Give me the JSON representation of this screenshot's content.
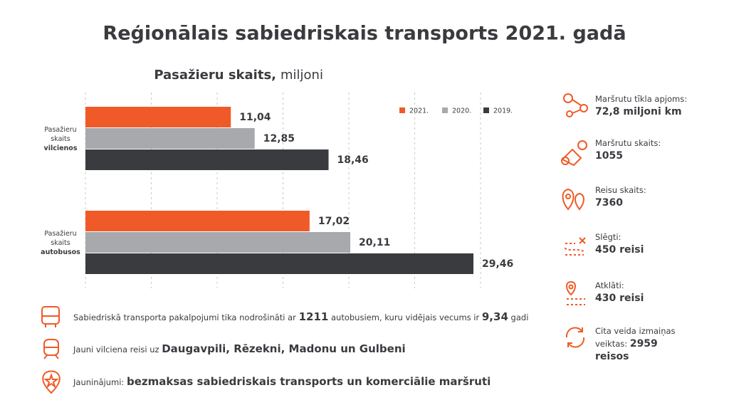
{
  "header": {
    "title": "Reģionālais sabiedriskais transports 2021. gadā"
  },
  "chart_data": {
    "type": "hbar",
    "title": "Pasažieru skaits,",
    "subtitle": "miljoni",
    "categories": [
      "Pasažieru skaits vilcienos",
      "Pasažieru skaits autobusos"
    ],
    "series": [
      {
        "name": "2021.",
        "color": "#f05a28",
        "values": [
          11.04,
          17.02
        ],
        "value_labels": [
          "11,04",
          "17,02"
        ]
      },
      {
        "name": "2020.",
        "color": "#a7a9ac",
        "values": [
          12.85,
          20.11
        ],
        "value_labels": [
          "12,85",
          "20,11"
        ]
      },
      {
        "name": "2019.",
        "color": "#3a3b3f",
        "values": [
          18.46,
          29.46
        ],
        "value_labels": [
          "18,46",
          "29,46"
        ]
      }
    ],
    "xlim": [
      0,
      30
    ],
    "xticks": [
      0,
      5,
      10,
      15,
      20,
      25,
      30
    ],
    "grid": true,
    "legend": "top-right"
  },
  "stats": [
    {
      "label": "Maršrutu tīkla apjoms:",
      "value": "72,8 miljoni km"
    },
    {
      "label": "Maršrutu skaits:",
      "value": "1055"
    },
    {
      "label": "Reisu skaits:",
      "value": "7360"
    },
    {
      "label": "Slēgti:",
      "value": "450 reisi"
    },
    {
      "label": "Atklāti:",
      "value": "430 reisi"
    },
    {
      "label": "Cita veida izmaiņas veiktas:",
      "value": "2959 reisos"
    }
  ],
  "notes": [
    {
      "parts": [
        "Sabiedriskā transporta pakalpojumi tika nodrošināti ar ",
        "1211",
        " autobusiem, kuru vidējais vecums ir ",
        "9,34",
        " gadi"
      ]
    },
    {
      "parts": [
        "Jauni vilciena reisi uz ",
        "Daugavpili, Rēzekni, Madonu un Gulbeni"
      ]
    },
    {
      "parts": [
        "Jauninājumi: ",
        "bezmaksas sabiedriskais transports un komerciālie maršruti"
      ]
    }
  ]
}
